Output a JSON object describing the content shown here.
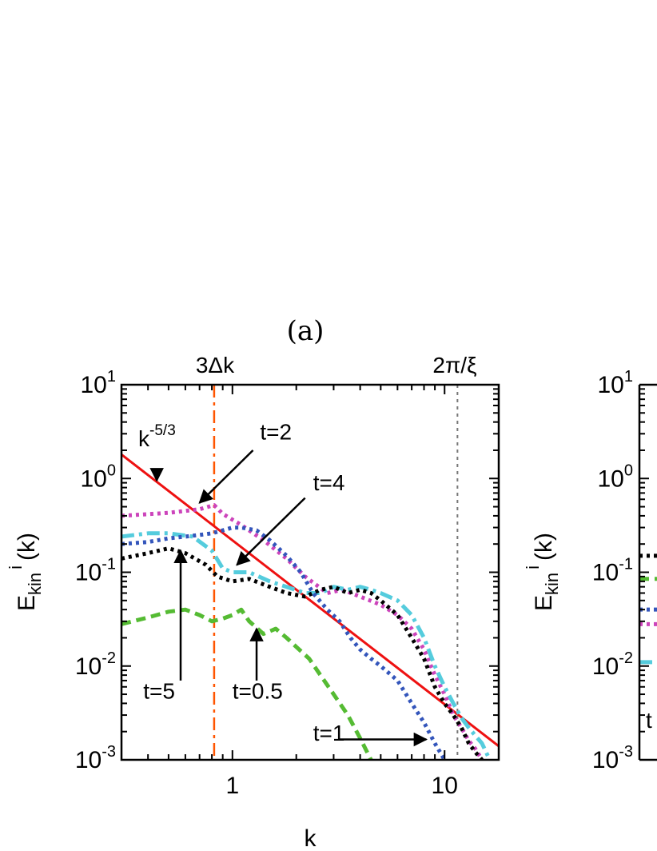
{
  "chart_data": [
    {
      "type": "line",
      "panel_label": "(a)",
      "xlabel": "k",
      "ylabel": "E",
      "ylabel_sub": "kin",
      "ylabel_sup": "i",
      "ylabel_arg": "(k)",
      "xscale": "log",
      "yscale": "log",
      "xlim": [
        0.3,
        18
      ],
      "ylim": [
        0.001,
        10
      ],
      "x_ticks": [
        {
          "value": 1,
          "label": "1"
        },
        {
          "value": 10,
          "label": "10"
        }
      ],
      "y_ticks": [
        {
          "value": 10,
          "base": "10",
          "exp": "1"
        },
        {
          "value": 1,
          "base": "10",
          "exp": "0"
        },
        {
          "value": 0.1,
          "base": "10",
          "exp": "-1"
        },
        {
          "value": 0.01,
          "base": "10",
          "exp": "-2"
        },
        {
          "value": 0.001,
          "base": "10",
          "exp": "-3"
        }
      ],
      "vertical_lines": [
        {
          "x": 0.82,
          "label": "3Δk",
          "color": "#ff5500",
          "style": "dashdot"
        },
        {
          "x": 11.5,
          "label": "2π/ξ",
          "color": "#777777",
          "style": "dotted"
        }
      ],
      "series": [
        {
          "id": "fit",
          "color": "#ee1111",
          "style": "solid",
          "x": [
            0.3,
            18
          ],
          "y": [
            1.8,
            0.0014
          ]
        },
        {
          "id": "t2",
          "color": "#cc44bb",
          "style": "dotted",
          "x": [
            0.3,
            0.5,
            0.7,
            0.82,
            0.9,
            1.1,
            1.4,
            1.8,
            2.2,
            2.8,
            3.3,
            4,
            5,
            6,
            7,
            8,
            9,
            10,
            11,
            12,
            13,
            14,
            15
          ],
          "y": [
            0.4,
            0.43,
            0.47,
            0.52,
            0.42,
            0.32,
            0.22,
            0.14,
            0.09,
            0.06,
            0.065,
            0.055,
            0.045,
            0.035,
            0.025,
            0.015,
            0.008,
            0.005,
            0.003,
            0.0022,
            0.0016,
            0.0013,
            0.001
          ]
        },
        {
          "id": "t4",
          "color": "#55ccdd",
          "style": "dashdot",
          "x": [
            0.3,
            0.4,
            0.5,
            0.65,
            0.8,
            0.9,
            1.0,
            1.2,
            1.5,
            1.8,
            2.2,
            2.6,
            3,
            3.5,
            4,
            4.5,
            5,
            6,
            7,
            8,
            9,
            10,
            11,
            12,
            13,
            14,
            15,
            16
          ],
          "y": [
            0.24,
            0.26,
            0.26,
            0.24,
            0.17,
            0.11,
            0.1,
            0.1,
            0.08,
            0.07,
            0.06,
            0.06,
            0.07,
            0.065,
            0.07,
            0.065,
            0.06,
            0.05,
            0.035,
            0.02,
            0.01,
            0.006,
            0.004,
            0.0028,
            0.0022,
            0.0018,
            0.0015,
            0.0011
          ]
        },
        {
          "id": "t5",
          "color": "#000000",
          "style": "dotted",
          "x": [
            0.3,
            0.4,
            0.5,
            0.6,
            0.75,
            0.85,
            1.0,
            1.2,
            1.5,
            1.8,
            2.2,
            2.6,
            3,
            3.5,
            4,
            4.5,
            5,
            6,
            7,
            8,
            9,
            10,
            11,
            12,
            13,
            14,
            15
          ],
          "y": [
            0.14,
            0.16,
            0.18,
            0.16,
            0.12,
            0.09,
            0.08,
            0.085,
            0.07,
            0.06,
            0.055,
            0.065,
            0.07,
            0.06,
            0.065,
            0.06,
            0.05,
            0.035,
            0.02,
            0.012,
            0.006,
            0.004,
            0.003,
            0.0022,
            0.0015,
            0.0012,
            0.001
          ]
        },
        {
          "id": "t1",
          "color": "#3355bb",
          "style": "dotted",
          "x": [
            0.3,
            0.4,
            0.5,
            0.6,
            0.7,
            0.8,
            0.9,
            1.0,
            1.1,
            1.3,
            1.5,
            1.8,
            2.1,
            2.4,
            2.8,
            3.2,
            3.6,
            4.0,
            4.5,
            5,
            6,
            7,
            8,
            9,
            10
          ],
          "y": [
            0.2,
            0.21,
            0.23,
            0.24,
            0.25,
            0.26,
            0.28,
            0.3,
            0.3,
            0.28,
            0.22,
            0.15,
            0.1,
            0.06,
            0.04,
            0.03,
            0.02,
            0.015,
            0.012,
            0.01,
            0.007,
            0.004,
            0.0025,
            0.0015,
            0.001
          ]
        },
        {
          "id": "t05",
          "color": "#55bb33",
          "style": "dashed",
          "x": [
            0.3,
            0.4,
            0.5,
            0.6,
            0.7,
            0.8,
            0.9,
            1.0,
            1.1,
            1.2,
            1.4,
            1.6,
            1.8,
            2.0,
            2.3,
            2.6,
            3.0,
            3.5,
            4.0,
            4.5
          ],
          "y": [
            0.028,
            0.033,
            0.038,
            0.04,
            0.035,
            0.03,
            0.032,
            0.035,
            0.04,
            0.03,
            0.022,
            0.025,
            0.02,
            0.016,
            0.012,
            0.008,
            0.005,
            0.003,
            0.0017,
            0.001
          ]
        }
      ],
      "annotations": [
        {
          "id": "a-fit",
          "label": "k",
          "sup": "-5/3",
          "text_at": [
            0.36,
            2.2
          ],
          "arrow_from": [
            0.44,
            1.25
          ],
          "arrow_to": [
            0.44,
            0.95
          ]
        },
        {
          "id": "a-t2",
          "label": "t=2",
          "text_at": [
            1.35,
            2.6
          ],
          "arrow_from": [
            1.25,
            2.0
          ],
          "arrow_to": [
            0.7,
            0.55
          ]
        },
        {
          "id": "a-t4",
          "label": "t=4",
          "text_at": [
            2.4,
            0.75
          ],
          "arrow_from": [
            2.2,
            0.62
          ],
          "arrow_to": [
            1.05,
            0.12
          ]
        },
        {
          "id": "a-t5",
          "label": "t=5",
          "text_at": [
            0.38,
            0.0045
          ],
          "arrow_from": [
            0.57,
            0.007
          ],
          "arrow_to": [
            0.57,
            0.17
          ]
        },
        {
          "id": "a-t05",
          "label": "t=0.5",
          "text_at": [
            1.0,
            0.0045
          ],
          "arrow_from": [
            1.3,
            0.007
          ],
          "arrow_to": [
            1.3,
            0.025
          ]
        },
        {
          "id": "a-t1",
          "label": "t=1",
          "text_at": [
            2.4,
            0.0016
          ],
          "arrow_from": [
            3.2,
            0.00165
          ],
          "arrow_to": [
            8.2,
            0.00165
          ]
        }
      ]
    },
    {
      "type": "line",
      "partial": true,
      "ylabel": "E",
      "ylabel_sub": "kin",
      "ylabel_sup": "i",
      "ylabel_arg": "(k)",
      "yscale": "log",
      "ylim": [
        0.001,
        10
      ],
      "y_ticks": [
        {
          "value": 10,
          "base": "10",
          "exp": "1"
        },
        {
          "value": 1,
          "base": "10",
          "exp": "0"
        },
        {
          "value": 0.1,
          "base": "10",
          "exp": "-1"
        },
        {
          "value": 0.01,
          "base": "10",
          "exp": "-2"
        },
        {
          "value": 0.001,
          "base": "10",
          "exp": "-3"
        }
      ],
      "series": [
        {
          "id": "b-black",
          "color": "#000000",
          "style": "dotted",
          "y_at_left": 0.15
        },
        {
          "id": "b-green",
          "color": "#55bb33",
          "style": "dashed",
          "y_at_left": 0.085
        },
        {
          "id": "b-blue",
          "color": "#3355bb",
          "style": "dotted",
          "y_at_left": 0.04
        },
        {
          "id": "b-magenta",
          "color": "#cc44bb",
          "style": "dotted",
          "y_at_left": 0.028
        },
        {
          "id": "b-cyan",
          "color": "#55ccdd",
          "style": "dashdot",
          "y_at_left": 0.011
        }
      ],
      "annotations": [
        {
          "id": "b-t",
          "label": "t",
          "text_at_y": 0.0022
        }
      ]
    }
  ]
}
